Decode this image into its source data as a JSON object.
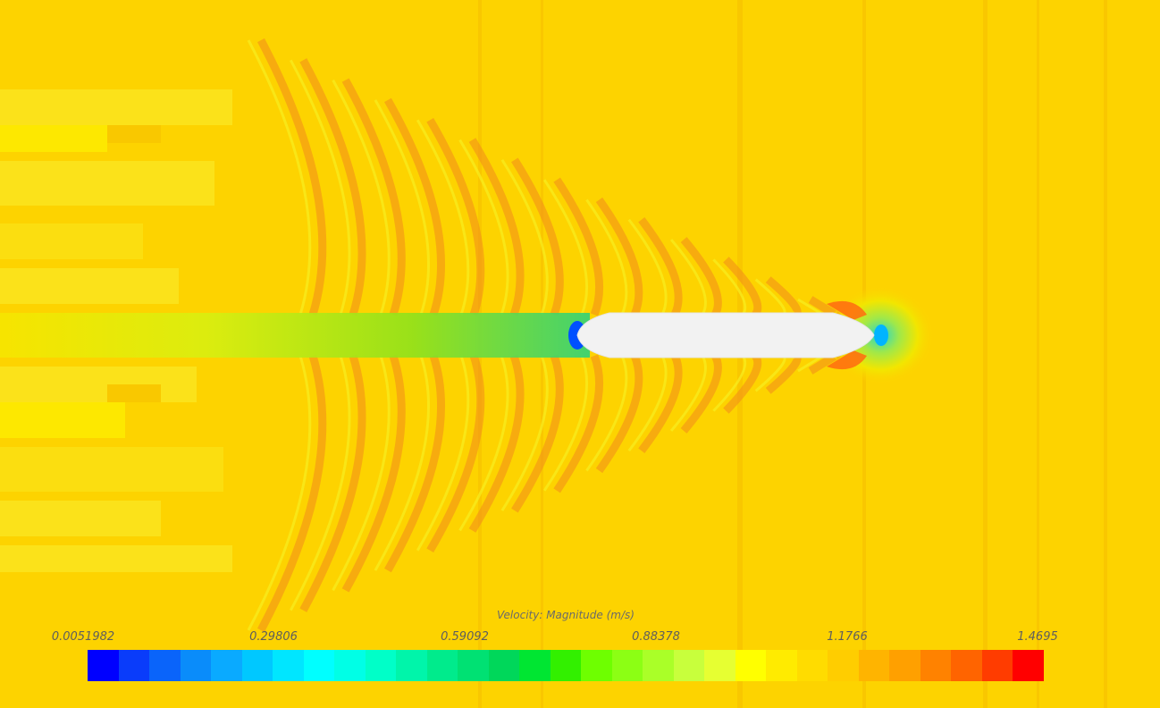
{
  "legend": {
    "title": "Velocity: Magnitude (m/s)",
    "labels": [
      "0.0051982",
      "0.29806",
      "0.59092",
      "0.88378",
      "1.1766",
      "1.4695"
    ],
    "colors": [
      "#0000ff",
      "#0a3cfa",
      "#0a64fa",
      "#0a8cfa",
      "#0aaaff",
      "#00c8ff",
      "#00e6ff",
      "#00ffff",
      "#00ffe6",
      "#00ffc8",
      "#00f5aa",
      "#00eb8c",
      "#00e173",
      "#00d75a",
      "#00e632",
      "#32f000",
      "#6eff00",
      "#8cff14",
      "#aaff28",
      "#c8ff3c",
      "#e6ff32",
      "#ffff00",
      "#ffeb00",
      "#ffdc00",
      "#ffcd00",
      "#ffb400",
      "#ffa000",
      "#ff8200",
      "#ff6400",
      "#ff3c00",
      "#ff0000"
    ]
  },
  "palette": {
    "background": "#fdd300",
    "body": "#f2f2f2"
  }
}
